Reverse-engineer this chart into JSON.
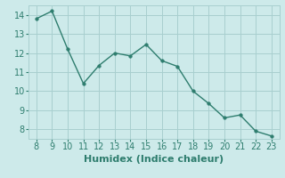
{
  "x": [
    8,
    9,
    10,
    11,
    12,
    13,
    14,
    15,
    16,
    17,
    18,
    19,
    20,
    21,
    22,
    23
  ],
  "y": [
    13.8,
    14.2,
    12.2,
    10.4,
    11.35,
    12.0,
    11.85,
    12.45,
    11.6,
    11.3,
    10.0,
    9.35,
    8.6,
    8.75,
    7.9,
    7.65
  ],
  "line_color": "#2e7d6e",
  "marker": "o",
  "marker_size": 2.5,
  "line_width": 1.0,
  "bg_color": "#cdeaea",
  "grid_color": "#a8cfcf",
  "xlabel": "Humidex (Indice chaleur)",
  "xlabel_fontsize": 8,
  "xlabel_fontweight": "bold",
  "xticks": [
    8,
    9,
    10,
    11,
    12,
    13,
    14,
    15,
    16,
    17,
    18,
    19,
    20,
    21,
    22,
    23
  ],
  "yticks": [
    8,
    9,
    10,
    11,
    12,
    13,
    14
  ],
  "xlim": [
    7.5,
    23.5
  ],
  "ylim": [
    7.5,
    14.5
  ],
  "tick_fontsize": 7,
  "tick_color": "#2e7d6e"
}
